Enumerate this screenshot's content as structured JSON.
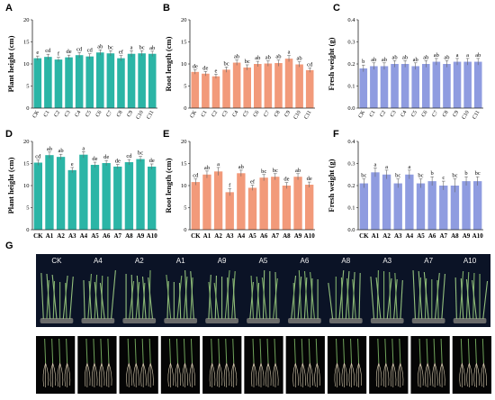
{
  "panels": {
    "letters": [
      "A",
      "B",
      "C",
      "D",
      "E",
      "F",
      "G"
    ]
  },
  "colors": {
    "teal": "#2bb5a6",
    "salmon": "#f29a7a",
    "periwinkle": "#8f9ce0",
    "photo_bg": "#0b1326",
    "soil": "#6b6b6b"
  },
  "chart_data": [
    {
      "id": "A",
      "type": "bar",
      "color": "teal",
      "ylabel": "Plant height (cm)",
      "categories": [
        "CK",
        "C1",
        "C2",
        "C3",
        "C4",
        "C5",
        "C6",
        "C7",
        "C8",
        "C9",
        "C10",
        "C11"
      ],
      "values": [
        11.3,
        11.6,
        11.0,
        11.5,
        12.0,
        11.7,
        12.6,
        12.4,
        11.3,
        12.3,
        12.4,
        12.3
      ],
      "errors": [
        0.5,
        0.6,
        0.5,
        0.5,
        0.6,
        0.6,
        0.6,
        0.6,
        0.6,
        0.7,
        0.6,
        0.6
      ],
      "letters": [
        "e",
        "cd",
        "f",
        "de",
        "cd",
        "cd",
        "ab",
        "bc",
        "ef",
        "a",
        "bc",
        "ab"
      ],
      "ylim": [
        0,
        20
      ],
      "ticks": [
        0,
        5,
        10,
        15,
        20
      ]
    },
    {
      "id": "B",
      "type": "bar",
      "color": "salmon",
      "ylabel": "Root length (cm)",
      "categories": [
        "CK",
        "C1",
        "C2",
        "C3",
        "C4",
        "C5",
        "C6",
        "C7",
        "C8",
        "C9",
        "C10",
        "C11"
      ],
      "values": [
        8.2,
        7.8,
        7.2,
        8.7,
        10.3,
        9.2,
        10.0,
        10.1,
        10.2,
        11.2,
        9.9,
        8.6
      ],
      "errors": [
        0.5,
        0.5,
        0.5,
        0.6,
        0.6,
        0.6,
        0.6,
        0.6,
        0.7,
        0.7,
        0.6,
        0.5
      ],
      "letters": [
        "de",
        "de",
        "e",
        "bc",
        "ab",
        "bc",
        "ab",
        "ab",
        "ab",
        "a",
        "ab",
        "cd"
      ],
      "ylim": [
        0,
        20
      ],
      "ticks": [
        0,
        5,
        10,
        15,
        20
      ]
    },
    {
      "id": "C",
      "type": "bar",
      "color": "periwinkle",
      "ylabel": "Fresh weight (g)",
      "categories": [
        "CK",
        "C1",
        "C2",
        "C3",
        "C4",
        "C5",
        "C6",
        "C7",
        "C8",
        "C9",
        "C10",
        "C11"
      ],
      "values": [
        0.18,
        0.19,
        0.19,
        0.2,
        0.2,
        0.19,
        0.2,
        0.21,
        0.2,
        0.21,
        0.21,
        0.21
      ],
      "errors": [
        0.015,
        0.015,
        0.015,
        0.015,
        0.015,
        0.015,
        0.015,
        0.015,
        0.015,
        0.015,
        0.015,
        0.015
      ],
      "letters": [
        "b",
        "ab",
        "ab",
        "ab",
        "ab",
        "ab",
        "ab",
        "ab",
        "ab",
        "a",
        "a",
        "ab"
      ],
      "ylim": [
        0,
        0.4
      ],
      "ticks": [
        0.0,
        0.1,
        0.2,
        0.3,
        0.4
      ]
    },
    {
      "id": "D",
      "type": "bar",
      "color": "teal",
      "ylabel": "Plant height (cm)",
      "categories": [
        "CK",
        "A1",
        "A2",
        "A3",
        "A4",
        "A5",
        "A6",
        "A7",
        "A8",
        "A9",
        "A10"
      ],
      "values": [
        15.2,
        16.9,
        16.5,
        13.5,
        17.0,
        14.7,
        15.1,
        14.3,
        15.3,
        16.0,
        14.3
      ],
      "errors": [
        0.6,
        0.7,
        0.6,
        0.6,
        0.7,
        0.6,
        0.6,
        0.5,
        0.6,
        0.6,
        0.6
      ],
      "letters": [
        "cd",
        "ab",
        "ab",
        "e",
        "a",
        "de",
        "de",
        "de",
        "cd",
        "bc",
        "de"
      ],
      "ylim": [
        0,
        20
      ],
      "ticks": [
        0,
        5,
        10,
        15,
        20
      ]
    },
    {
      "id": "E",
      "type": "bar",
      "color": "salmon",
      "ylabel": "Root length (cm)",
      "categories": [
        "CK",
        "A1",
        "A2",
        "A3",
        "A4",
        "A5",
        "A6",
        "A7",
        "A8",
        "A9",
        "A10"
      ],
      "values": [
        10.8,
        12.5,
        13.2,
        8.5,
        12.8,
        9.5,
        11.8,
        12.0,
        10.0,
        12.0,
        10.2
      ],
      "errors": [
        0.7,
        0.8,
        0.9,
        0.8,
        0.7,
        0.6,
        0.7,
        0.7,
        0.7,
        0.7,
        0.6
      ],
      "letters": [
        "cd",
        "ab",
        "a",
        "f",
        "ab",
        "ef",
        "bc",
        "bc",
        "de",
        "ab",
        "de"
      ],
      "ylim": [
        0,
        20
      ],
      "ticks": [
        0,
        5,
        10,
        15,
        20
      ]
    },
    {
      "id": "F",
      "type": "bar",
      "color": "periwinkle",
      "ylabel": "Fresh weight (g)",
      "categories": [
        "CK",
        "A1",
        "A2",
        "A3",
        "A4",
        "A5",
        "A6",
        "A7",
        "A8",
        "A9",
        "A10"
      ],
      "values": [
        0.21,
        0.26,
        0.25,
        0.21,
        0.25,
        0.21,
        0.22,
        0.2,
        0.2,
        0.22,
        0.22
      ],
      "errors": [
        0.02,
        0.02,
        0.02,
        0.02,
        0.02,
        0.02,
        0.02,
        0.02,
        0.03,
        0.02,
        0.02
      ],
      "letters": [
        "bc",
        "a",
        "a",
        "bc",
        "a",
        "bc",
        "b",
        "c",
        "bc",
        "b",
        "bc"
      ],
      "ylim": [
        0,
        0.4
      ],
      "ticks": [
        0.0,
        0.1,
        0.2,
        0.3,
        0.4
      ]
    }
  ],
  "photo": {
    "labels": [
      "CK",
      "A4",
      "A2",
      "A1",
      "A9",
      "A5",
      "A6",
      "A8",
      "A3",
      "A7",
      "A10"
    ]
  }
}
